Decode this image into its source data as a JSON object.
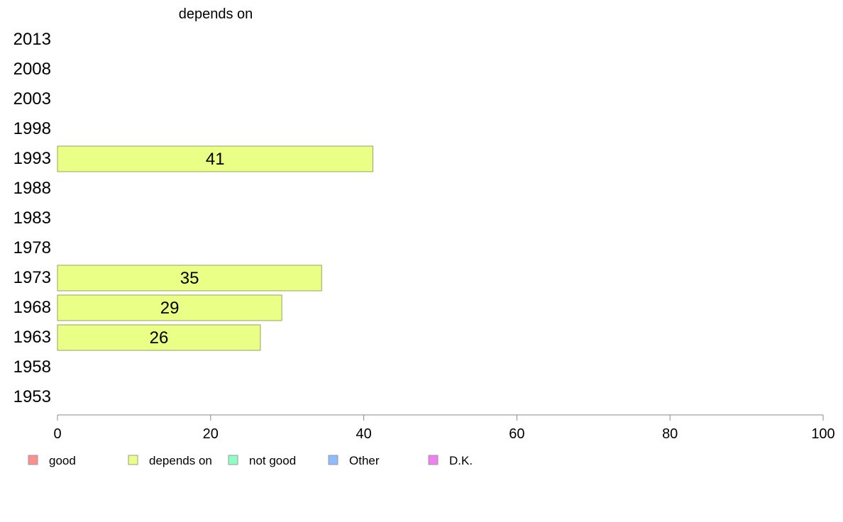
{
  "chart_data": {
    "type": "bar",
    "orientation": "horizontal",
    "title": "depends on",
    "categories": [
      "2013",
      "2008",
      "2003",
      "1998",
      "1993",
      "1988",
      "1983",
      "1978",
      "1973",
      "1968",
      "1963",
      "1958",
      "1953"
    ],
    "series": [
      {
        "name": "depends on",
        "color": "#eaff85",
        "values": [
          null,
          null,
          null,
          null,
          41.2,
          null,
          null,
          null,
          34.5,
          29.3,
          26.5,
          null,
          null
        ],
        "labels": [
          "",
          "",
          "",
          "",
          "41",
          "",
          "",
          "",
          "35",
          "29",
          "26",
          "",
          ""
        ]
      }
    ],
    "xlim": [
      0,
      100
    ],
    "xticks": [
      "0",
      "20",
      "40",
      "60",
      "80",
      "100"
    ],
    "grid": false,
    "legend": {
      "placement": "bottom",
      "items": [
        {
          "label": "good",
          "color": "#ff8f8f"
        },
        {
          "label": "depends on",
          "color": "#eaff85"
        },
        {
          "label": "not good",
          "color": "#8fffc4"
        },
        {
          "label": "Other",
          "color": "#8fbcff"
        },
        {
          "label": "D.K.",
          "color": "#f07ff0"
        }
      ]
    }
  }
}
